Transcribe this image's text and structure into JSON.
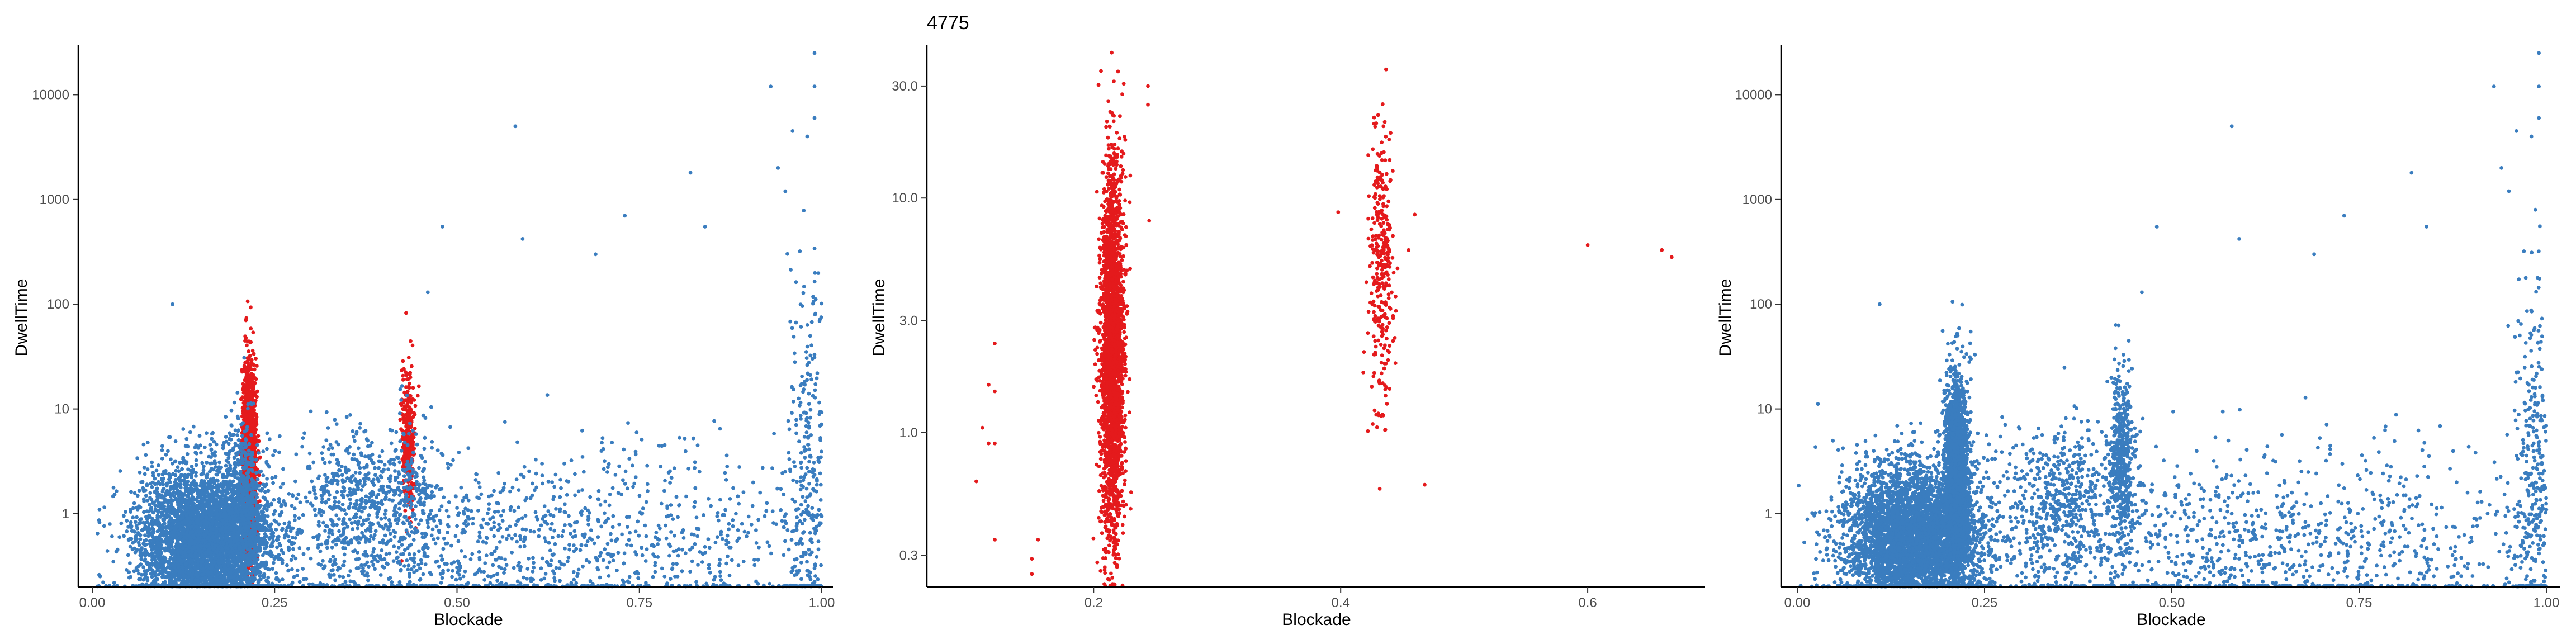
{
  "colors": {
    "blue": "#3a7dbf",
    "red": "#e41a1c",
    "axis": "#000000",
    "tick_text": "#4d4d4d"
  },
  "chart_data": [
    {
      "type": "scatter",
      "title": "",
      "xlabel": "Blockade",
      "ylabel": "DwellTime",
      "xlim": [
        0.0,
        1.0
      ],
      "ylim": [
        0.2,
        30000
      ],
      "y_scale": "log10",
      "x_ticks": [
        0.0,
        0.25,
        0.5,
        0.75,
        1.0
      ],
      "x_tick_labels": [
        "0.00",
        "0.25",
        "0.50",
        "0.75",
        "1.00"
      ],
      "y_ticks": [
        1,
        10,
        100,
        1000,
        10000
      ],
      "y_tick_labels": [
        "1",
        "10",
        "100",
        "1000",
        "10000"
      ],
      "grid": false,
      "legend": "none",
      "series": [
        {
          "color": "blue",
          "clusters": [
            {
              "x_center": 0.155,
              "x_spread": 0.045,
              "y_log_center": -0.25,
              "y_log_spread": 0.35,
              "count": 4200
            },
            {
              "x_center": 0.205,
              "x_spread": 0.012,
              "y_log_center": 0.0,
              "y_log_spread": 0.45,
              "count": 500
            },
            {
              "x_center": 0.36,
              "x_spread": 0.035,
              "y_log_center": 0.1,
              "y_log_spread": 0.35,
              "count": 450
            },
            {
              "x_center": 0.44,
              "x_spread": 0.02,
              "y_log_center": 0.1,
              "y_log_spread": 0.4,
              "count": 200
            },
            {
              "x_center": 0.58,
              "x_spread": 0.25,
              "y_log_center": -0.3,
              "y_log_spread": 0.45,
              "count": 1400
            },
            {
              "x_center": 0.985,
              "x_spread": 0.015,
              "y_log_center": 0.3,
              "y_log_spread": 0.9,
              "count": 350
            }
          ],
          "points": [
            {
              "x": 0.11,
              "y": 100
            },
            {
              "x": 0.58,
              "y": 5000
            },
            {
              "x": 0.93,
              "y": 12000
            },
            {
              "x": 0.99,
              "y": 25000
            },
            {
              "x": 0.99,
              "y": 12000
            },
            {
              "x": 0.96,
              "y": 4500
            },
            {
              "x": 0.98,
              "y": 4000
            },
            {
              "x": 0.99,
              "y": 6000
            },
            {
              "x": 0.94,
              "y": 2000
            },
            {
              "x": 0.95,
              "y": 1200
            },
            {
              "x": 0.82,
              "y": 1800
            },
            {
              "x": 0.73,
              "y": 700
            },
            {
              "x": 0.48,
              "y": 550
            },
            {
              "x": 0.84,
              "y": 550
            },
            {
              "x": 0.59,
              "y": 420
            },
            {
              "x": 0.69,
              "y": 300
            },
            {
              "x": 0.97,
              "y": 320
            },
            {
              "x": 0.46,
              "y": 130
            }
          ]
        },
        {
          "color": "red",
          "clusters": [
            {
              "x_center": 0.215,
              "x_spread": 0.004,
              "y_log_center": 0.45,
              "y_log_spread": 0.42,
              "count": 2600
            },
            {
              "x_center": 0.433,
              "x_spread": 0.0045,
              "y_log_center": 0.7,
              "y_log_spread": 0.35,
              "count": 320
            }
          ]
        }
      ]
    },
    {
      "type": "scatter",
      "title": "4775",
      "xlabel": "Blockade",
      "ylabel": "DwellTime",
      "xlim": [
        0.065,
        0.695
      ],
      "ylim": [
        0.22,
        45
      ],
      "y_scale": "log10",
      "x_ticks": [
        0.2,
        0.4,
        0.6
      ],
      "x_tick_labels": [
        "0.2",
        "0.4",
        "0.6"
      ],
      "y_ticks": [
        0.3,
        1.0,
        3.0,
        10.0,
        30.0
      ],
      "y_tick_labels": [
        "0.3",
        "1.0",
        "3.0",
        "10.0",
        "30.0"
      ],
      "grid": false,
      "legend": "none",
      "series": [
        {
          "color": "red",
          "clusters": [
            {
              "x_center": 0.215,
              "x_spread": 0.0045,
              "y_log_center": 0.35,
              "y_log_spread": 0.38,
              "count": 2600
            },
            {
              "x_center": 0.433,
              "x_spread": 0.005,
              "y_log_center": 0.7,
              "y_log_spread": 0.3,
              "count": 320
            }
          ],
          "points": [
            {
              "x": 0.12,
              "y": 2.4
            },
            {
              "x": 0.115,
              "y": 1.6
            },
            {
              "x": 0.12,
              "y": 1.5
            },
            {
              "x": 0.11,
              "y": 1.05
            },
            {
              "x": 0.115,
              "y": 0.9
            },
            {
              "x": 0.12,
              "y": 0.9
            },
            {
              "x": 0.105,
              "y": 0.62
            },
            {
              "x": 0.12,
              "y": 0.35
            },
            {
              "x": 0.155,
              "y": 0.35
            },
            {
              "x": 0.15,
              "y": 0.29
            },
            {
              "x": 0.15,
              "y": 0.25
            },
            {
              "x": 0.244,
              "y": 30
            },
            {
              "x": 0.244,
              "y": 25
            },
            {
              "x": 0.245,
              "y": 8
            },
            {
              "x": 0.398,
              "y": 8.7
            },
            {
              "x": 0.46,
              "y": 8.5
            },
            {
              "x": 0.455,
              "y": 6
            },
            {
              "x": 0.468,
              "y": 0.6
            },
            {
              "x": 0.6,
              "y": 6.3
            },
            {
              "x": 0.66,
              "y": 6
            },
            {
              "x": 0.668,
              "y": 5.6
            }
          ]
        }
      ]
    },
    {
      "type": "scatter",
      "title": "",
      "xlabel": "Blockade",
      "ylabel": "DwellTime",
      "xlim": [
        0.0,
        1.0
      ],
      "ylim": [
        0.2,
        30000
      ],
      "y_scale": "log10",
      "x_ticks": [
        0.0,
        0.25,
        0.5,
        0.75,
        1.0
      ],
      "x_tick_labels": [
        "0.00",
        "0.25",
        "0.50",
        "0.75",
        "1.00"
      ],
      "y_ticks": [
        1,
        10,
        100,
        1000,
        10000
      ],
      "y_tick_labels": [
        "1",
        "10",
        "100",
        "1000",
        "10000"
      ],
      "grid": false,
      "legend": "none",
      "series": [
        {
          "color": "blue",
          "clusters": [
            {
              "x_center": 0.155,
              "x_spread": 0.045,
              "y_log_center": -0.25,
              "y_log_spread": 0.35,
              "count": 4200
            },
            {
              "x_center": 0.213,
              "x_spread": 0.008,
              "y_log_center": 0.35,
              "y_log_spread": 0.45,
              "count": 2200
            },
            {
              "x_center": 0.36,
              "x_spread": 0.035,
              "y_log_center": 0.1,
              "y_log_spread": 0.35,
              "count": 450
            },
            {
              "x_center": 0.433,
              "x_spread": 0.008,
              "y_log_center": 0.55,
              "y_log_spread": 0.4,
              "count": 450
            },
            {
              "x_center": 0.58,
              "x_spread": 0.25,
              "y_log_center": -0.3,
              "y_log_spread": 0.45,
              "count": 1400
            },
            {
              "x_center": 0.985,
              "x_spread": 0.015,
              "y_log_center": 0.3,
              "y_log_spread": 0.9,
              "count": 350
            }
          ],
          "points": [
            {
              "x": 0.11,
              "y": 100
            },
            {
              "x": 0.58,
              "y": 5000
            },
            {
              "x": 0.93,
              "y": 12000
            },
            {
              "x": 0.99,
              "y": 25000
            },
            {
              "x": 0.99,
              "y": 12000
            },
            {
              "x": 0.96,
              "y": 4500
            },
            {
              "x": 0.98,
              "y": 4000
            },
            {
              "x": 0.99,
              "y": 6000
            },
            {
              "x": 0.94,
              "y": 2000
            },
            {
              "x": 0.95,
              "y": 1200
            },
            {
              "x": 0.82,
              "y": 1800
            },
            {
              "x": 0.73,
              "y": 700
            },
            {
              "x": 0.48,
              "y": 550
            },
            {
              "x": 0.84,
              "y": 550
            },
            {
              "x": 0.59,
              "y": 420
            },
            {
              "x": 0.69,
              "y": 300
            },
            {
              "x": 0.97,
              "y": 320
            },
            {
              "x": 0.46,
              "y": 130
            }
          ]
        }
      ]
    }
  ]
}
